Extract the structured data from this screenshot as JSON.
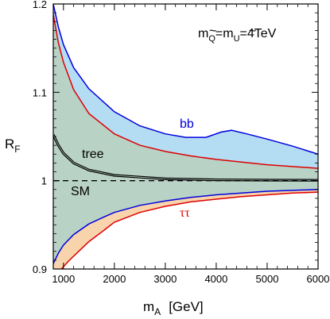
{
  "chart_data": {
    "type": "line",
    "xlabel": {
      "main": "m",
      "sub": "A",
      "unit": "[GeV]"
    },
    "ylabel": {
      "main": "R",
      "sub": "F"
    },
    "xlim": [
      800,
      6000
    ],
    "ylim": [
      0.9,
      1.2
    ],
    "x_ticks": [
      1000,
      2000,
      3000,
      4000,
      5000,
      6000
    ],
    "y_ticks": [
      0.9,
      1.0,
      1.1,
      1.2
    ],
    "y_tick_labels": [
      "0.9",
      "1",
      "1.1",
      "1.2"
    ],
    "grid": false,
    "annotation": {
      "mQ": "m",
      "Q_sub": "Q",
      "eq": "=m",
      "U_sub": "U",
      "value": "=4TeV"
    },
    "colors": {
      "bb": "#0000dd",
      "tautau": "#dd0000",
      "tree": "#000000",
      "sm": "#000000",
      "band_green": "#b9d2c6",
      "band_blue": "#b4dcf2",
      "band_orange": "#f8d4ac"
    },
    "series": [
      {
        "name": "bb",
        "color": "#0000dd",
        "x": [
          800,
          900,
          1000,
          1200,
          1500,
          2000,
          2500,
          3000,
          3400,
          3800,
          4100,
          4300,
          4600,
          5000,
          5500,
          6000
        ],
        "y": [
          1.2,
          1.174,
          1.154,
          1.128,
          1.104,
          1.078,
          1.062,
          1.053,
          1.049,
          1.049,
          1.055,
          1.057,
          1.053,
          1.047,
          1.039,
          1.03
        ]
      },
      {
        "name": "",
        "color": "#dd0000",
        "x": [
          800,
          900,
          1000,
          1200,
          1500,
          2000,
          2500,
          3000,
          3500,
          4000,
          4500,
          5000,
          5500,
          6000
        ],
        "y": [
          1.188,
          1.156,
          1.134,
          1.103,
          1.076,
          1.053,
          1.04,
          1.033,
          1.028,
          1.024,
          1.021,
          1.018,
          1.016,
          1.014
        ]
      },
      {
        "name": "tree",
        "color": "#000000",
        "x": [
          800,
          900,
          1000,
          1200,
          1500,
          2000,
          2500,
          3000,
          3500,
          4000,
          5000,
          6000
        ],
        "y": [
          1.052,
          1.04,
          1.031,
          1.02,
          1.012,
          1.006,
          1.004,
          1.002,
          1.0015,
          1.001,
          1.0006,
          1.0004
        ]
      },
      {
        "name": "SM",
        "color": "#000000",
        "x": [
          800,
          6000
        ],
        "y": [
          1.0,
          1.0
        ]
      },
      {
        "name": "",
        "color": "#0000dd",
        "x": [
          800,
          900,
          1000,
          1200,
          1500,
          1800,
          2000,
          2500,
          3000,
          3500,
          4000,
          4500,
          5000,
          5500,
          6000
        ],
        "y": [
          0.906,
          0.918,
          0.927,
          0.939,
          0.951,
          0.959,
          0.964,
          0.972,
          0.977,
          0.981,
          0.984,
          0.986,
          0.988,
          0.989,
          0.99
        ]
      },
      {
        "name": "ττ",
        "color": "#dd0000",
        "x": [
          960,
          1100,
          1300,
          1500,
          1800,
          2000,
          2500,
          3000,
          3500,
          4000,
          4500,
          5000,
          5500,
          6000
        ],
        "y": [
          0.9,
          0.909,
          0.92,
          0.931,
          0.944,
          0.953,
          0.964,
          0.971,
          0.976,
          0.979,
          0.982,
          0.984,
          0.986,
          0.987
        ]
      }
    ],
    "labels": {
      "bb": "bb",
      "tautau": "ττ",
      "tree": "tree",
      "sm": "SM"
    }
  }
}
